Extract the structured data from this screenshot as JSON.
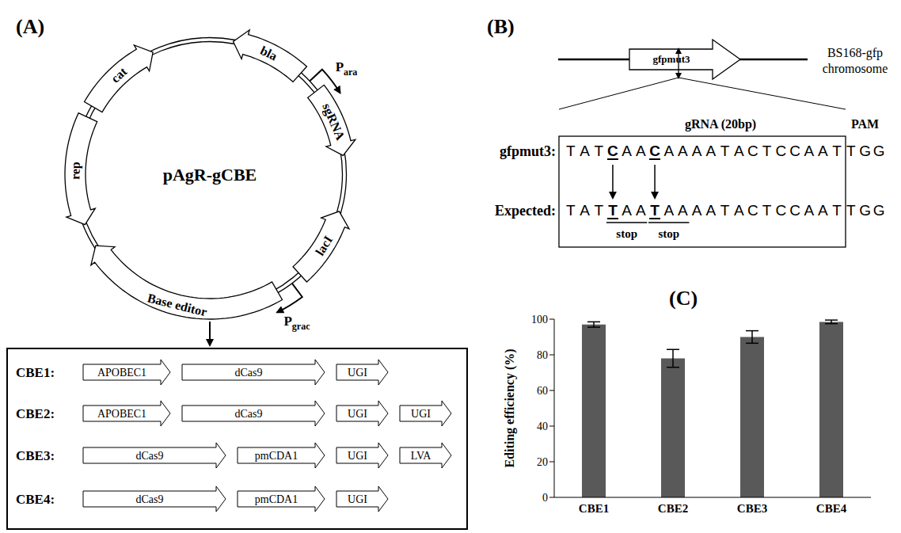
{
  "panel_a": {
    "label": "(A)",
    "plasmid": "pAgR-gCBE",
    "features": [
      {
        "name": "bla"
      },
      {
        "name": "sgRNA"
      },
      {
        "name": "lacI"
      },
      {
        "name": "Base editor"
      },
      {
        "name": "rep"
      },
      {
        "name": "cat"
      }
    ],
    "promoters": [
      {
        "label": "P",
        "subscript": "ara"
      },
      {
        "label": "P",
        "subscript": "grac"
      }
    ],
    "constructs": [
      {
        "name": "CBE1:",
        "modules": [
          "APOBEC1",
          "dCas9",
          "UGI"
        ]
      },
      {
        "name": "CBE2:",
        "modules": [
          "APOBEC1",
          "dCas9",
          "UGI",
          "UGI"
        ]
      },
      {
        "name": "CBE3:",
        "modules": [
          "dCas9",
          "pmCDA1",
          "UGI",
          "LVA"
        ]
      },
      {
        "name": "CBE4:",
        "modules": [
          "dCas9",
          "pmCDA1",
          "UGI"
        ]
      }
    ]
  },
  "panel_b": {
    "label": "(B)",
    "locus": "gfpmut3",
    "chromosome": [
      "BS168-gfp",
      "chromosome"
    ],
    "guide_header": "gRNA (20bp)",
    "pam_header": "PAM",
    "stop": "stop",
    "rows": [
      {
        "name": "gfpmut3:",
        "protospacer": [
          {
            "text": "TAT"
          },
          {
            "text": "C",
            "edited": true
          },
          {
            "text": "AA"
          },
          {
            "text": "C",
            "edited": true
          },
          {
            "text": "AAAATACTCCAAT"
          }
        ],
        "pam": "TGG"
      },
      {
        "name": "Expected:",
        "protospacer": [
          {
            "text": "TAT"
          },
          {
            "text": "T",
            "edited": true
          },
          {
            "text": "AA"
          },
          {
            "text": "T",
            "edited": true
          },
          {
            "text": "AAAATACTCCAAT"
          }
        ],
        "pam": "TGG"
      }
    ]
  },
  "chart_data": {
    "type": "bar",
    "title": "(C)",
    "y_label": "Editing efficiency (%)",
    "categories": [
      "CBE1",
      "CBE2",
      "CBE3",
      "CBE4"
    ],
    "values": [
      97,
      78,
      90,
      98.5
    ],
    "errors": [
      1.5,
      5,
      3.5,
      1
    ],
    "color": "#595959",
    "ylim": [
      0,
      100
    ],
    "yticks": [
      0,
      20,
      40,
      60,
      80,
      100
    ],
    "grid": false
  }
}
